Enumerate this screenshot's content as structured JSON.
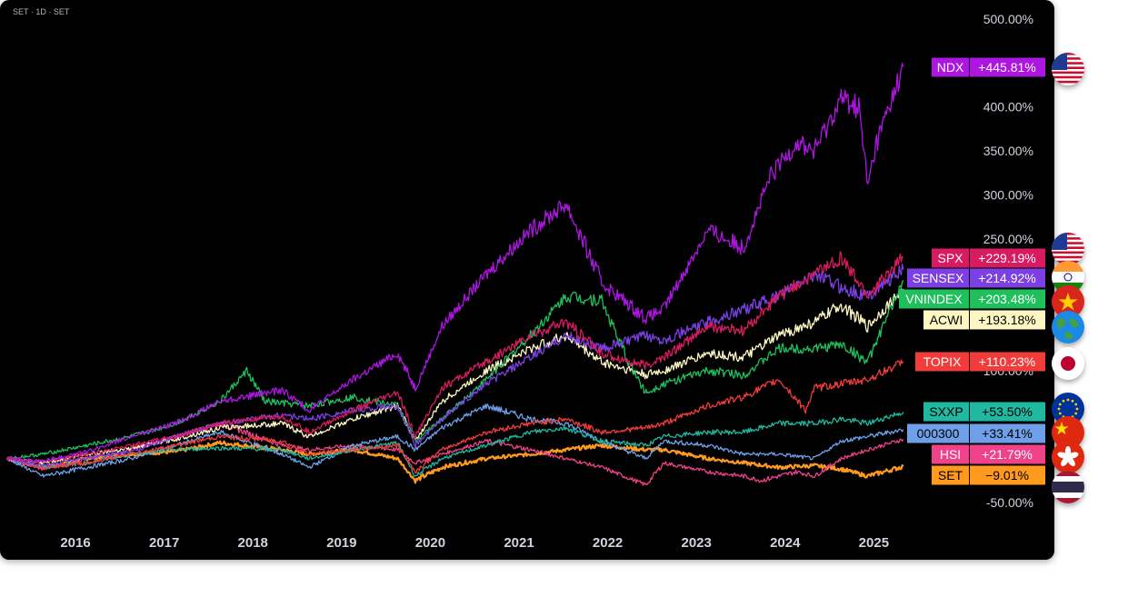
{
  "header": {
    "symbol_line": "SET · 1D · SET"
  },
  "chart_data": {
    "type": "line",
    "title": "SET · 1D · SET",
    "ylabel": "",
    "ylim": [
      -60,
      510
    ],
    "yticks": [
      -50,
      100,
      250,
      300,
      350,
      400,
      500
    ],
    "ytick_labels": [
      "-50.00%",
      "100.00%",
      "250.00%",
      "300.00%",
      "350.00%",
      "400.00%",
      "500.00%"
    ],
    "x": [
      "2016",
      "2017",
      "2018",
      "2019",
      "2020",
      "2021",
      "2022",
      "2023",
      "2024",
      "2025"
    ],
    "xlim": [
      2015.6,
      2026.4
    ],
    "series": [
      {
        "name": "NDX",
        "label": "+445.81%",
        "color": "#ad15e0",
        "flag": "us",
        "data": [
          [
            2015.6,
            0
          ],
          [
            2016.0,
            -3
          ],
          [
            2016.5,
            8
          ],
          [
            2017.0,
            25
          ],
          [
            2017.5,
            40
          ],
          [
            2018.0,
            65
          ],
          [
            2018.7,
            78
          ],
          [
            2019.0,
            55
          ],
          [
            2019.5,
            90
          ],
          [
            2020.0,
            120
          ],
          [
            2020.2,
            80
          ],
          [
            2020.5,
            150
          ],
          [
            2021.0,
            210
          ],
          [
            2021.5,
            260
          ],
          [
            2021.9,
            290
          ],
          [
            2022.3,
            200
          ],
          [
            2022.8,
            160
          ],
          [
            2023.0,
            170
          ],
          [
            2023.5,
            260
          ],
          [
            2023.9,
            240
          ],
          [
            2024.2,
            320
          ],
          [
            2024.5,
            360
          ],
          [
            2024.7,
            350
          ],
          [
            2025.0,
            410
          ],
          [
            2025.2,
            400
          ],
          [
            2025.3,
            310
          ],
          [
            2025.4,
            360
          ],
          [
            2025.7,
            446
          ]
        ]
      },
      {
        "name": "SPX",
        "label": "+229.19%",
        "color": "#d81b60",
        "flag": "us",
        "data": [
          [
            2015.6,
            0
          ],
          [
            2016.0,
            -3
          ],
          [
            2016.5,
            5
          ],
          [
            2017.0,
            15
          ],
          [
            2017.5,
            25
          ],
          [
            2018.0,
            40
          ],
          [
            2018.7,
            48
          ],
          [
            2019.0,
            30
          ],
          [
            2019.5,
            55
          ],
          [
            2020.0,
            75
          ],
          [
            2020.2,
            25
          ],
          [
            2020.5,
            80
          ],
          [
            2021.0,
            110
          ],
          [
            2021.5,
            140
          ],
          [
            2021.9,
            155
          ],
          [
            2022.3,
            120
          ],
          [
            2022.8,
            105
          ],
          [
            2023.0,
            115
          ],
          [
            2023.5,
            150
          ],
          [
            2023.9,
            145
          ],
          [
            2024.3,
            185
          ],
          [
            2024.7,
            210
          ],
          [
            2025.0,
            228
          ],
          [
            2025.3,
            185
          ],
          [
            2025.7,
            229
          ]
        ]
      },
      {
        "name": "SENSEX",
        "label": "+214.92%",
        "color": "#7b3fe4",
        "flag": "in",
        "data": [
          [
            2015.6,
            0
          ],
          [
            2016.0,
            -8
          ],
          [
            2016.5,
            0
          ],
          [
            2017.0,
            8
          ],
          [
            2017.5,
            25
          ],
          [
            2018.0,
            40
          ],
          [
            2018.7,
            50
          ],
          [
            2019.0,
            45
          ],
          [
            2019.5,
            55
          ],
          [
            2020.0,
            60
          ],
          [
            2020.2,
            15
          ],
          [
            2020.5,
            45
          ],
          [
            2021.0,
            85
          ],
          [
            2021.5,
            115
          ],
          [
            2021.9,
            140
          ],
          [
            2022.3,
            125
          ],
          [
            2022.8,
            140
          ],
          [
            2023.0,
            135
          ],
          [
            2023.5,
            155
          ],
          [
            2023.9,
            170
          ],
          [
            2024.3,
            185
          ],
          [
            2024.7,
            210
          ],
          [
            2025.0,
            195
          ],
          [
            2025.3,
            185
          ],
          [
            2025.7,
            215
          ]
        ]
      },
      {
        "name": "VNINDEX",
        "label": "+203.48%",
        "color": "#1fbf5c",
        "flag": "vn",
        "data": [
          [
            2015.6,
            0
          ],
          [
            2016.0,
            5
          ],
          [
            2016.5,
            15
          ],
          [
            2017.0,
            25
          ],
          [
            2017.5,
            40
          ],
          [
            2018.0,
            65
          ],
          [
            2018.3,
            100
          ],
          [
            2018.5,
            65
          ],
          [
            2019.0,
            60
          ],
          [
            2019.5,
            70
          ],
          [
            2020.0,
            60
          ],
          [
            2020.2,
            20
          ],
          [
            2020.5,
            45
          ],
          [
            2021.0,
            90
          ],
          [
            2021.5,
            140
          ],
          [
            2021.9,
            185
          ],
          [
            2022.3,
            180
          ],
          [
            2022.6,
            110
          ],
          [
            2022.8,
            75
          ],
          [
            2023.0,
            85
          ],
          [
            2023.5,
            100
          ],
          [
            2023.9,
            95
          ],
          [
            2024.3,
            125
          ],
          [
            2024.7,
            125
          ],
          [
            2025.0,
            130
          ],
          [
            2025.3,
            110
          ],
          [
            2025.7,
            203
          ]
        ]
      },
      {
        "name": "ACWI",
        "label": "+193.18%",
        "color": "#fff7c2",
        "flag": "world",
        "data": [
          [
            2015.6,
            0
          ],
          [
            2016.0,
            -5
          ],
          [
            2016.5,
            5
          ],
          [
            2017.0,
            12
          ],
          [
            2017.5,
            22
          ],
          [
            2018.0,
            35
          ],
          [
            2018.7,
            40
          ],
          [
            2019.0,
            25
          ],
          [
            2019.5,
            45
          ],
          [
            2020.0,
            60
          ],
          [
            2020.2,
            20
          ],
          [
            2020.5,
            65
          ],
          [
            2021.0,
            100
          ],
          [
            2021.5,
            125
          ],
          [
            2021.9,
            140
          ],
          [
            2022.3,
            110
          ],
          [
            2022.8,
            95
          ],
          [
            2023.0,
            100
          ],
          [
            2023.5,
            120
          ],
          [
            2023.9,
            115
          ],
          [
            2024.3,
            140
          ],
          [
            2024.7,
            155
          ],
          [
            2025.0,
            175
          ],
          [
            2025.3,
            150
          ],
          [
            2025.7,
            193
          ]
        ]
      },
      {
        "name": "TOPIX",
        "label": "+110.23%",
        "color": "#f23b3b",
        "flag": "jp",
        "data": [
          [
            2015.6,
            0
          ],
          [
            2016.0,
            -10
          ],
          [
            2016.5,
            -5
          ],
          [
            2017.0,
            5
          ],
          [
            2017.5,
            15
          ],
          [
            2018.0,
            25
          ],
          [
            2018.7,
            20
          ],
          [
            2019.0,
            5
          ],
          [
            2019.5,
            10
          ],
          [
            2020.0,
            15
          ],
          [
            2020.2,
            -15
          ],
          [
            2020.5,
            10
          ],
          [
            2021.0,
            30
          ],
          [
            2021.5,
            40
          ],
          [
            2021.9,
            45
          ],
          [
            2022.3,
            30
          ],
          [
            2022.8,
            35
          ],
          [
            2023.0,
            40
          ],
          [
            2023.5,
            60
          ],
          [
            2023.9,
            70
          ],
          [
            2024.3,
            90
          ],
          [
            2024.6,
            55
          ],
          [
            2024.7,
            80
          ],
          [
            2025.0,
            85
          ],
          [
            2025.3,
            90
          ],
          [
            2025.7,
            110
          ]
        ]
      },
      {
        "name": "SXXP",
        "label": "+53.50%",
        "color": "#20b8a0",
        "flag": "eu",
        "data": [
          [
            2015.6,
            0
          ],
          [
            2016.0,
            -10
          ],
          [
            2016.5,
            -5
          ],
          [
            2017.0,
            5
          ],
          [
            2017.5,
            10
          ],
          [
            2018.0,
            12
          ],
          [
            2018.7,
            10
          ],
          [
            2019.0,
            0
          ],
          [
            2019.5,
            10
          ],
          [
            2020.0,
            18
          ],
          [
            2020.2,
            -20
          ],
          [
            2020.5,
            0
          ],
          [
            2021.0,
            15
          ],
          [
            2021.5,
            30
          ],
          [
            2021.9,
            35
          ],
          [
            2022.3,
            20
          ],
          [
            2022.8,
            15
          ],
          [
            2023.0,
            25
          ],
          [
            2023.5,
            30
          ],
          [
            2023.9,
            30
          ],
          [
            2024.3,
            40
          ],
          [
            2024.7,
            40
          ],
          [
            2025.0,
            45
          ],
          [
            2025.3,
            40
          ],
          [
            2025.7,
            53
          ]
        ]
      },
      {
        "name": "000300",
        "label": "+33.41%",
        "color": "#6f9fe8",
        "flag": "cn",
        "data": [
          [
            2015.6,
            0
          ],
          [
            2016.0,
            -20
          ],
          [
            2016.5,
            -10
          ],
          [
            2017.0,
            0
          ],
          [
            2017.5,
            15
          ],
          [
            2018.0,
            30
          ],
          [
            2018.7,
            5
          ],
          [
            2019.0,
            -10
          ],
          [
            2019.5,
            15
          ],
          [
            2020.0,
            25
          ],
          [
            2020.2,
            10
          ],
          [
            2020.5,
            35
          ],
          [
            2021.0,
            60
          ],
          [
            2021.5,
            45
          ],
          [
            2021.9,
            40
          ],
          [
            2022.3,
            20
          ],
          [
            2022.8,
            0
          ],
          [
            2023.0,
            20
          ],
          [
            2023.5,
            15
          ],
          [
            2023.9,
            5
          ],
          [
            2024.3,
            5
          ],
          [
            2024.7,
            0
          ],
          [
            2025.0,
            20
          ],
          [
            2025.3,
            25
          ],
          [
            2025.7,
            33
          ]
        ]
      },
      {
        "name": "HSI",
        "label": "+21.79%",
        "color": "#f0428a",
        "flag": "hk",
        "data": [
          [
            2015.6,
            0
          ],
          [
            2016.0,
            -12
          ],
          [
            2016.5,
            0
          ],
          [
            2017.0,
            10
          ],
          [
            2017.5,
            25
          ],
          [
            2018.0,
            40
          ],
          [
            2018.7,
            15
          ],
          [
            2019.0,
            10
          ],
          [
            2019.5,
            15
          ],
          [
            2020.0,
            10
          ],
          [
            2020.2,
            -5
          ],
          [
            2020.5,
            5
          ],
          [
            2021.0,
            20
          ],
          [
            2021.5,
            10
          ],
          [
            2021.9,
            0
          ],
          [
            2022.3,
            -10
          ],
          [
            2022.8,
            -30
          ],
          [
            2023.0,
            -5
          ],
          [
            2023.5,
            -15
          ],
          [
            2023.9,
            -20
          ],
          [
            2024.1,
            -25
          ],
          [
            2024.5,
            -15
          ],
          [
            2024.7,
            -20
          ],
          [
            2025.0,
            0
          ],
          [
            2025.3,
            10
          ],
          [
            2025.7,
            22
          ]
        ]
      },
      {
        "name": "SET",
        "label": "−9.01%",
        "color": "#ff9a1f",
        "flag": "th",
        "data": [
          [
            2015.6,
            0
          ],
          [
            2016.0,
            -10
          ],
          [
            2016.5,
            0
          ],
          [
            2017.0,
            5
          ],
          [
            2017.5,
            8
          ],
          [
            2018.0,
            18
          ],
          [
            2018.7,
            10
          ],
          [
            2019.0,
            5
          ],
          [
            2019.5,
            10
          ],
          [
            2020.0,
            0
          ],
          [
            2020.2,
            -25
          ],
          [
            2020.5,
            -10
          ],
          [
            2021.0,
            0
          ],
          [
            2021.5,
            5
          ],
          [
            2021.9,
            10
          ],
          [
            2022.3,
            15
          ],
          [
            2022.8,
            10
          ],
          [
            2023.0,
            10
          ],
          [
            2023.5,
            0
          ],
          [
            2023.9,
            -5
          ],
          [
            2024.3,
            -10
          ],
          [
            2024.7,
            -8
          ],
          [
            2025.0,
            -12
          ],
          [
            2025.3,
            -20
          ],
          [
            2025.7,
            -9
          ]
        ]
      }
    ]
  }
}
